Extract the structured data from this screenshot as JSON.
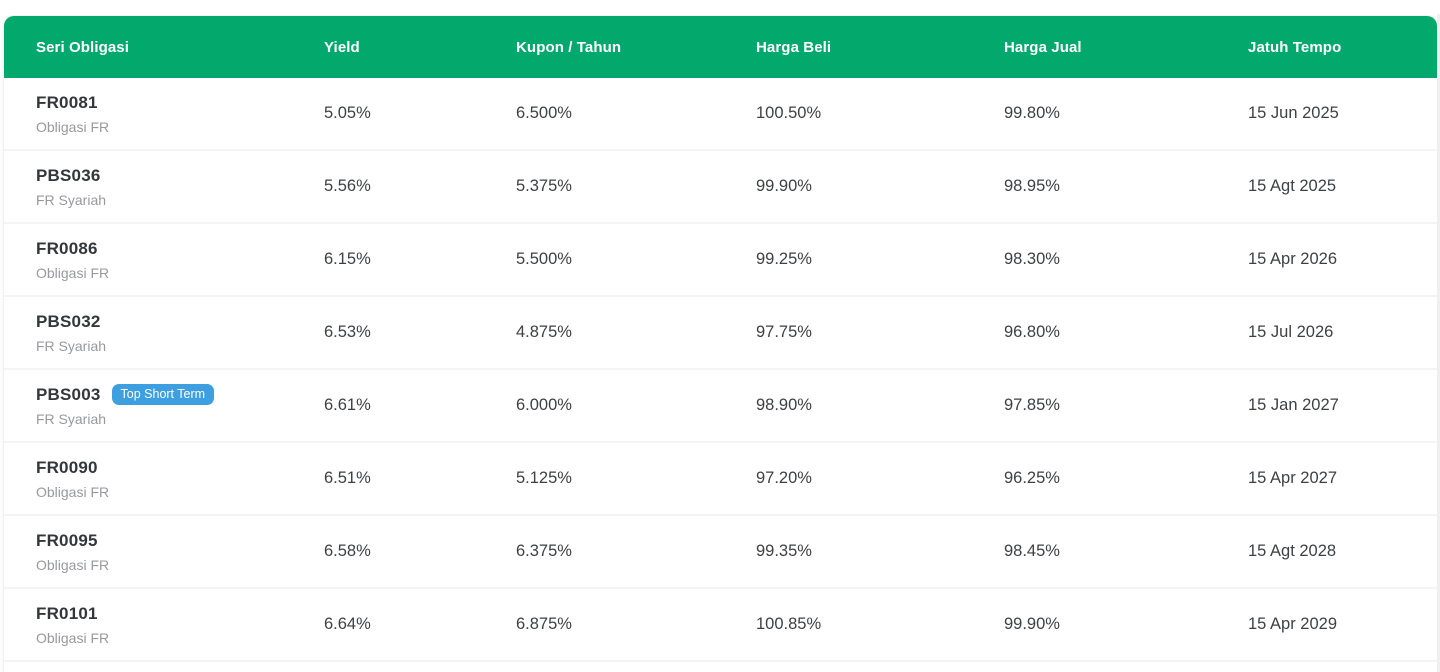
{
  "colors": {
    "header_bg": "#03A86C",
    "header_text": "#ffffff",
    "badge_bg": "#3E9FE0",
    "badge_text": "#ffffff"
  },
  "table": {
    "columns": [
      {
        "label": "Seri Obligasi"
      },
      {
        "label": "Yield"
      },
      {
        "label": "Kupon / Tahun"
      },
      {
        "label": "Harga Beli"
      },
      {
        "label": "Harga Jual"
      },
      {
        "label": "Jatuh Tempo"
      }
    ],
    "rows": [
      {
        "code": "FR0081",
        "type": "Obligasi FR",
        "badge": null,
        "yield": "5.05%",
        "kupon": "6.500%",
        "harga_beli": "100.50%",
        "harga_jual": "99.80%",
        "jatuh_tempo": "15 Jun 2025"
      },
      {
        "code": "PBS036",
        "type": "FR Syariah",
        "badge": null,
        "yield": "5.56%",
        "kupon": "5.375%",
        "harga_beli": "99.90%",
        "harga_jual": "98.95%",
        "jatuh_tempo": "15 Agt 2025"
      },
      {
        "code": "FR0086",
        "type": "Obligasi FR",
        "badge": null,
        "yield": "6.15%",
        "kupon": "5.500%",
        "harga_beli": "99.25%",
        "harga_jual": "98.30%",
        "jatuh_tempo": "15 Apr 2026"
      },
      {
        "code": "PBS032",
        "type": "FR Syariah",
        "badge": null,
        "yield": "6.53%",
        "kupon": "4.875%",
        "harga_beli": "97.75%",
        "harga_jual": "96.80%",
        "jatuh_tempo": "15 Jul 2026"
      },
      {
        "code": "PBS003",
        "type": "FR Syariah",
        "badge": "Top Short Term",
        "yield": "6.61%",
        "kupon": "6.000%",
        "harga_beli": "98.90%",
        "harga_jual": "97.85%",
        "jatuh_tempo": "15 Jan 2027"
      },
      {
        "code": "FR0090",
        "type": "Obligasi FR",
        "badge": null,
        "yield": "6.51%",
        "kupon": "5.125%",
        "harga_beli": "97.20%",
        "harga_jual": "96.25%",
        "jatuh_tempo": "15 Apr 2027"
      },
      {
        "code": "FR0095",
        "type": "Obligasi FR",
        "badge": null,
        "yield": "6.58%",
        "kupon": "6.375%",
        "harga_beli": "99.35%",
        "harga_jual": "98.45%",
        "jatuh_tempo": "15 Agt 2028"
      },
      {
        "code": "FR0101",
        "type": "Obligasi FR",
        "badge": null,
        "yield": "6.64%",
        "kupon": "6.875%",
        "harga_beli": "100.85%",
        "harga_jual": "99.90%",
        "jatuh_tempo": "15 Apr 2029"
      }
    ]
  }
}
